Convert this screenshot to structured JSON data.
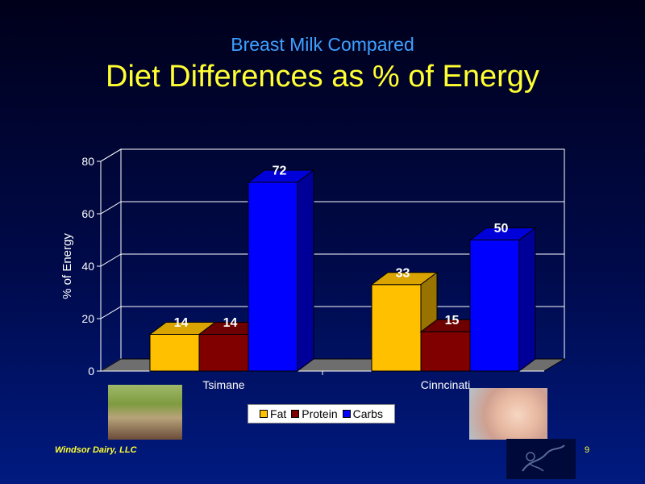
{
  "slide": {
    "subtitle": "Breast Milk Compared",
    "title": "Diet Differences as % of Energy",
    "footer_credit": "Windsor Dairy, LLC",
    "page_number": "9"
  },
  "images": {
    "left_photo": "family-photo",
    "right_photo": "baby-photo",
    "logo": "company-logo"
  },
  "chart_data": {
    "type": "bar",
    "categories": [
      "Tsimane",
      "Cinncinati"
    ],
    "series": [
      {
        "name": "Fat",
        "values": [
          14,
          33
        ],
        "color": "#ffc000"
      },
      {
        "name": "Protein",
        "values": [
          14,
          15
        ],
        "color": "#800000"
      },
      {
        "name": "Carbs",
        "values": [
          72,
          50
        ],
        "color": "#0000ff"
      }
    ],
    "data_labels": [
      [
        "14",
        "33"
      ],
      [
        "14",
        "15"
      ],
      [
        "72",
        "50"
      ]
    ],
    "ylabel": "% of Energy",
    "xlabel": "",
    "ylim": [
      0,
      80
    ],
    "yticks": [
      0,
      20,
      40,
      60,
      80
    ],
    "grid": true,
    "three_d": true,
    "legend_position": "bottom"
  }
}
